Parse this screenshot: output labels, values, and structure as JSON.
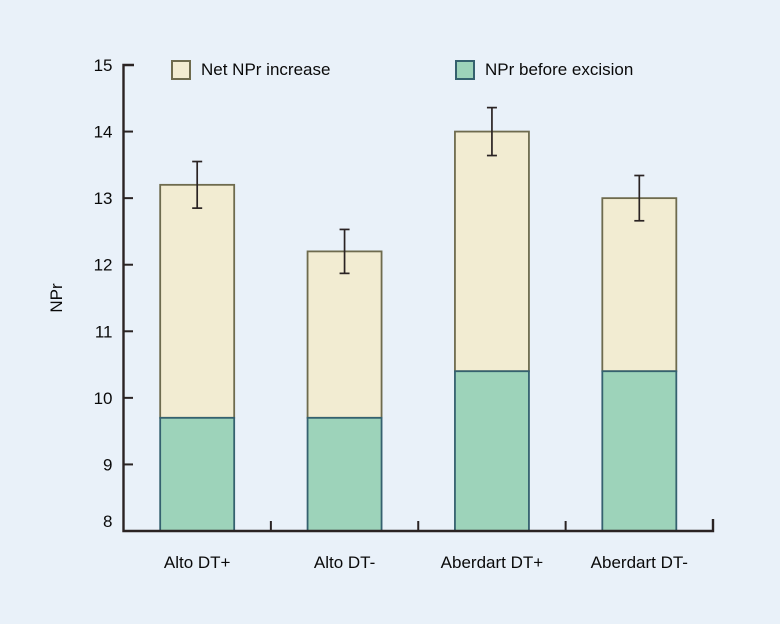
{
  "chart_data": {
    "type": "bar",
    "subtype": "stacked-vertical-with-error-bars",
    "title": "",
    "xlabel": "",
    "ylabel": "NPr",
    "categories": [
      "Alto DT+",
      "Alto DT-",
      "Aberdart DT+",
      "Aberdart DT-"
    ],
    "series": [
      {
        "name": "NPr before excision",
        "values": [
          9.7,
          9.7,
          10.4,
          10.4
        ]
      },
      {
        "name": "Net NPr increase",
        "values": [
          3.5,
          2.5,
          3.6,
          2.6
        ]
      }
    ],
    "stack_totals": [
      13.2,
      12.2,
      14.0,
      13.0
    ],
    "error_bars": [
      0.35,
      0.33,
      0.36,
      0.34
    ],
    "ylim": [
      8,
      15
    ],
    "yticks": [
      8,
      9,
      10,
      11,
      12,
      13,
      14,
      15
    ],
    "grid": false,
    "legend_position": "top"
  },
  "legend": {
    "items": [
      {
        "label": "Net NPr increase",
        "series_key": "cream"
      },
      {
        "label": "NPr before excision",
        "series_key": "teal"
      }
    ]
  },
  "colors": {
    "background": "#e9f1f9",
    "axis": "#2a2323",
    "text": "#0a0a0a",
    "cream_fill": "#f2ecd2",
    "cream_stroke": "#6e6b4e",
    "teal_fill": "#9dd3ba",
    "teal_stroke": "#35616f",
    "error_bar": "#2a2323"
  }
}
